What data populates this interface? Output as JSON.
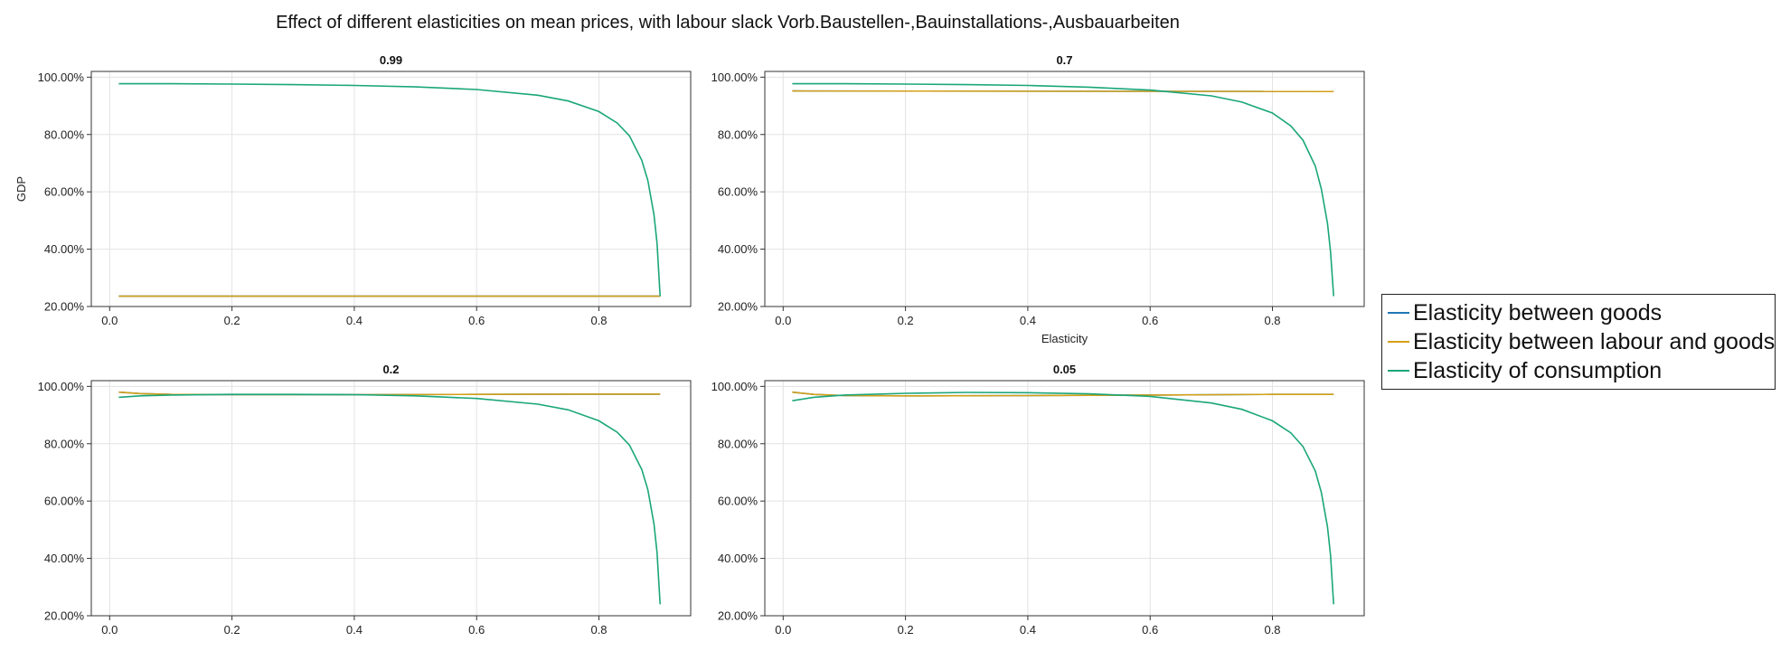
{
  "figure": {
    "title": "Effect of different elasticities on mean prices, with labour slack Vorb.Baustellen-,Bauinstallations-,Ausbauarbeiten"
  },
  "legend": {
    "placement": "right",
    "items": [
      {
        "label": "Elasticity between goods",
        "color": "#1f77b4"
      },
      {
        "label": "Elasticity between labour and goods",
        "color": "#d4a017"
      },
      {
        "label": "Elasticity of consumption",
        "color": "#1aa67a"
      }
    ]
  },
  "chart_data": [
    {
      "type": "line",
      "title": "0.99",
      "xlabel": "",
      "ylabel": "GDP",
      "xlim": [
        -0.03,
        0.95
      ],
      "ylim": [
        0.2,
        1.02
      ],
      "xticks": [
        "0.0",
        "0.2",
        "0.4",
        "0.6",
        "0.8"
      ],
      "yticks": [
        "20.00%",
        "40.00%",
        "60.00%",
        "80.00%",
        "100.00%"
      ],
      "grid": true,
      "series": [
        {
          "name": "Elasticity between goods",
          "x": [
            0.015,
            0.9
          ],
          "y": [
            0.236,
            0.236
          ]
        },
        {
          "name": "Elasticity between labour and goods",
          "x": [
            0.015,
            0.9
          ],
          "y": [
            0.236,
            0.236
          ]
        },
        {
          "name": "Elasticity of consumption",
          "x": [
            0.015,
            0.1,
            0.2,
            0.3,
            0.4,
            0.5,
            0.6,
            0.7,
            0.75,
            0.8,
            0.83,
            0.85,
            0.87,
            0.88,
            0.89,
            0.895,
            0.9
          ],
          "y": [
            0.977,
            0.977,
            0.976,
            0.974,
            0.971,
            0.966,
            0.957,
            0.937,
            0.917,
            0.88,
            0.84,
            0.795,
            0.71,
            0.64,
            0.52,
            0.42,
            0.236
          ]
        }
      ]
    },
    {
      "type": "line",
      "title": "0.7",
      "xlabel": "Elasticity",
      "ylabel": "",
      "xlim": [
        -0.03,
        0.95
      ],
      "ylim": [
        0.2,
        1.02
      ],
      "xticks": [
        "0.0",
        "0.2",
        "0.4",
        "0.6",
        "0.8"
      ],
      "yticks": [
        "20.00%",
        "40.00%",
        "60.00%",
        "80.00%",
        "100.00%"
      ],
      "grid": true,
      "series": [
        {
          "name": "Elasticity between goods",
          "x": [
            0.015,
            0.9
          ],
          "y": [
            0.952,
            0.95
          ]
        },
        {
          "name": "Elasticity between labour and goods",
          "x": [
            0.015,
            0.9
          ],
          "y": [
            0.952,
            0.95
          ]
        },
        {
          "name": "Elasticity of consumption",
          "x": [
            0.015,
            0.1,
            0.2,
            0.3,
            0.4,
            0.5,
            0.6,
            0.7,
            0.75,
            0.8,
            0.83,
            0.85,
            0.87,
            0.88,
            0.89,
            0.895,
            0.9
          ],
          "y": [
            0.977,
            0.977,
            0.976,
            0.974,
            0.971,
            0.965,
            0.955,
            0.935,
            0.913,
            0.875,
            0.83,
            0.78,
            0.69,
            0.61,
            0.49,
            0.39,
            0.236
          ]
        }
      ]
    },
    {
      "type": "line",
      "title": "0.2",
      "xlabel": "",
      "ylabel": "",
      "xlim": [
        -0.03,
        0.95
      ],
      "ylim": [
        0.2,
        1.02
      ],
      "xticks": [
        "0.0",
        "0.2",
        "0.4",
        "0.6",
        "0.8"
      ],
      "yticks": [
        "20.00%",
        "40.00%",
        "60.00%",
        "80.00%",
        "100.00%"
      ],
      "grid": true,
      "series": [
        {
          "name": "Elasticity between goods",
          "x": [
            0.015,
            0.05,
            0.1,
            0.2,
            0.4,
            0.6,
            0.8,
            0.9
          ],
          "y": [
            0.98,
            0.975,
            0.972,
            0.971,
            0.971,
            0.972,
            0.973,
            0.973
          ]
        },
        {
          "name": "Elasticity between labour and goods",
          "x": [
            0.015,
            0.05,
            0.1,
            0.2,
            0.4,
            0.6,
            0.8,
            0.9
          ],
          "y": [
            0.98,
            0.975,
            0.972,
            0.971,
            0.971,
            0.972,
            0.973,
            0.973
          ]
        },
        {
          "name": "Elasticity of consumption",
          "x": [
            0.015,
            0.05,
            0.1,
            0.2,
            0.3,
            0.4,
            0.5,
            0.6,
            0.7,
            0.75,
            0.8,
            0.83,
            0.85,
            0.87,
            0.88,
            0.89,
            0.895,
            0.9
          ],
          "y": [
            0.962,
            0.967,
            0.97,
            0.972,
            0.972,
            0.971,
            0.967,
            0.958,
            0.938,
            0.918,
            0.88,
            0.84,
            0.795,
            0.71,
            0.64,
            0.52,
            0.42,
            0.24
          ]
        }
      ]
    },
    {
      "type": "line",
      "title": "0.05",
      "xlabel": "",
      "ylabel": "",
      "xlim": [
        -0.03,
        0.95
      ],
      "ylim": [
        0.2,
        1.02
      ],
      "xticks": [
        "0.0",
        "0.2",
        "0.4",
        "0.6",
        "0.8"
      ],
      "yticks": [
        "20.00%",
        "40.00%",
        "60.00%",
        "80.00%",
        "100.00%"
      ],
      "grid": true,
      "series": [
        {
          "name": "Elasticity between goods",
          "x": [
            0.015,
            0.05,
            0.1,
            0.2,
            0.4,
            0.6,
            0.8,
            0.9
          ],
          "y": [
            0.98,
            0.972,
            0.968,
            0.967,
            0.968,
            0.97,
            0.972,
            0.972
          ]
        },
        {
          "name": "Elasticity between labour and goods",
          "x": [
            0.015,
            0.05,
            0.1,
            0.2,
            0.4,
            0.6,
            0.8,
            0.9
          ],
          "y": [
            0.98,
            0.972,
            0.968,
            0.967,
            0.968,
            0.97,
            0.972,
            0.972
          ]
        },
        {
          "name": "Elasticity of consumption",
          "x": [
            0.015,
            0.05,
            0.1,
            0.2,
            0.3,
            0.4,
            0.5,
            0.6,
            0.7,
            0.75,
            0.8,
            0.83,
            0.85,
            0.87,
            0.88,
            0.89,
            0.895,
            0.9
          ],
          "y": [
            0.95,
            0.962,
            0.97,
            0.976,
            0.979,
            0.978,
            0.974,
            0.965,
            0.942,
            0.92,
            0.88,
            0.838,
            0.79,
            0.705,
            0.63,
            0.51,
            0.41,
            0.24
          ]
        }
      ]
    }
  ]
}
